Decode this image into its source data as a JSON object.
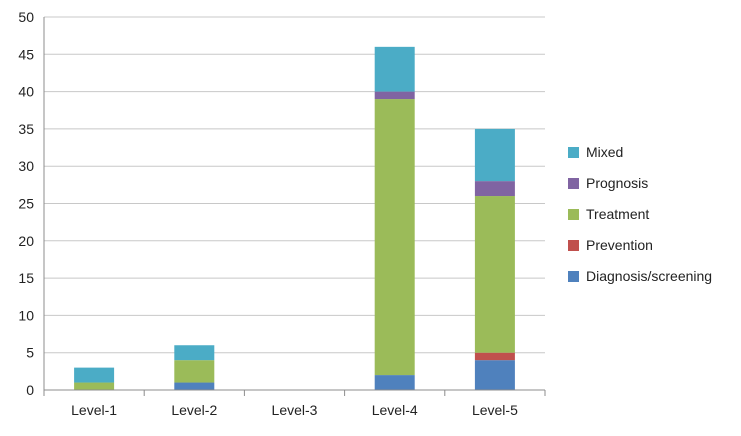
{
  "chart_data": {
    "type": "bar",
    "stacked": true,
    "title": "",
    "xlabel": "",
    "ylabel": "",
    "ylim": [
      0,
      50
    ],
    "ytick_step": 5,
    "grid": true,
    "legend_position": "right",
    "categories": [
      "Level-1",
      "Level-2",
      "Level-3",
      "Level-4",
      "Level-5"
    ],
    "series": [
      {
        "name": "Diagnosis/screening",
        "color": "#4f81bd",
        "values": [
          0,
          1,
          0,
          2,
          4
        ]
      },
      {
        "name": "Prevention",
        "color": "#c0504d",
        "values": [
          0,
          0,
          0,
          0,
          1
        ]
      },
      {
        "name": "Treatment",
        "color": "#9bbb59",
        "values": [
          1,
          3,
          0,
          37,
          21
        ]
      },
      {
        "name": "Prognosis",
        "color": "#8064a2",
        "values": [
          0,
          0,
          0,
          1,
          2
        ]
      },
      {
        "name": "Mixed",
        "color": "#4bacc6",
        "values": [
          2,
          2,
          0,
          6,
          7
        ]
      }
    ]
  }
}
